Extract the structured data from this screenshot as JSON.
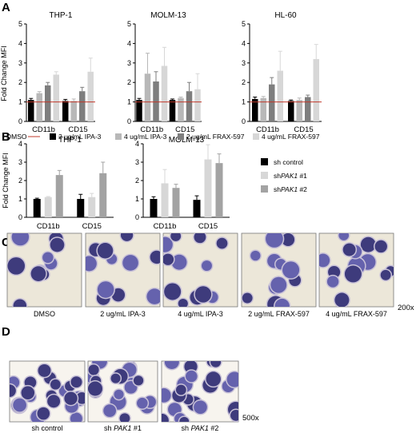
{
  "panels": {
    "A": "A",
    "B": "B",
    "C": "C",
    "D": "D"
  },
  "colors": {
    "black": "#000000",
    "gray1": "#b8b8b8",
    "gray2": "#7e7e7e",
    "gray3": "#d7d7d7",
    "gray4": "#a3a3a3",
    "dmso_line": "#c0392b",
    "cell": "#5a58a8",
    "cell_dark": "#2f2c72",
    "bg_light": "#ece7d9",
    "bg_white": "#f7f4ee"
  },
  "chart_data": [
    {
      "type": "bar",
      "title": "THP-1",
      "ylabel": "Fold Change MFI",
      "ylim": [
        0,
        5
      ],
      "yticks": [
        "0",
        "1",
        "2",
        "3",
        "4",
        "5"
      ],
      "categories": [
        "CD11b",
        "CD15"
      ],
      "reference_line": 1,
      "series": [
        {
          "name": "2 ug/mL IPA-3",
          "color_key": "black",
          "values": [
            1.1,
            1.05
          ],
          "errors": [
            0.08,
            0.08
          ]
        },
        {
          "name": "4 ug/mL IPA-3",
          "color_key": "gray1",
          "values": [
            1.45,
            1.05
          ],
          "errors": [
            0.08,
            0.1
          ]
        },
        {
          "name": "2 ug/mL FRAX-597",
          "color_key": "gray2",
          "values": [
            1.85,
            1.55
          ],
          "errors": [
            0.15,
            0.2
          ]
        },
        {
          "name": "4 ug/mL FRAX-597",
          "color_key": "gray3",
          "values": [
            2.4,
            2.55
          ],
          "errors": [
            0.15,
            0.7
          ]
        }
      ]
    },
    {
      "type": "bar",
      "title": "MOLM-13",
      "ylim": [
        0,
        5
      ],
      "yticks": [
        "0",
        "1",
        "2",
        "3",
        "4",
        "5"
      ],
      "categories": [
        "CD11b",
        "CD15"
      ],
      "reference_line": 1,
      "series": [
        {
          "name": "2 ug/mL IPA-3",
          "color_key": "black",
          "values": [
            1.1,
            1.1
          ],
          "errors": [
            0.08,
            0.05
          ]
        },
        {
          "name": "4 ug/mL IPA-3",
          "color_key": "gray1",
          "values": [
            2.45,
            1.2
          ],
          "errors": [
            1.05,
            0.05
          ]
        },
        {
          "name": "2 ug/mL FRAX-597",
          "color_key": "gray2",
          "values": [
            2.05,
            1.55
          ],
          "errors": [
            0.5,
            0.45
          ]
        },
        {
          "name": "4 ug/mL FRAX-597",
          "color_key": "gray3",
          "values": [
            2.85,
            1.65
          ],
          "errors": [
            0.95,
            0.8
          ]
        }
      ]
    },
    {
      "type": "bar",
      "title": "HL-60",
      "ylim": [
        0,
        5
      ],
      "yticks": [
        "0",
        "1",
        "2",
        "3",
        "4",
        "5"
      ],
      "categories": [
        "CD11b",
        "CD15"
      ],
      "reference_line": 1,
      "series": [
        {
          "name": "2 ug/mL IPA-3",
          "color_key": "black",
          "values": [
            1.15,
            1.05
          ],
          "errors": [
            0.1,
            0.05
          ]
        },
        {
          "name": "4 ug/mL IPA-3",
          "color_key": "gray1",
          "values": [
            1.2,
            1.1
          ],
          "errors": [
            0.08,
            0.1
          ]
        },
        {
          "name": "2 ug/mL FRAX-597",
          "color_key": "gray2",
          "values": [
            1.9,
            1.25
          ],
          "errors": [
            0.35,
            0.1
          ]
        },
        {
          "name": "4 ug/mL FRAX-597",
          "color_key": "gray3",
          "values": [
            2.6,
            3.2
          ],
          "errors": [
            1.0,
            0.75
          ]
        }
      ]
    },
    {
      "type": "bar",
      "title": "THP-1",
      "ylabel": "Fold Change MFI",
      "ylim": [
        0,
        4
      ],
      "yticks": [
        "0",
        "1",
        "2",
        "3",
        "4"
      ],
      "categories": [
        "CD11b",
        "CD15"
      ],
      "series": [
        {
          "name": "sh control",
          "color_key": "black",
          "values": [
            1.0,
            1.0
          ],
          "errors": [
            0.04,
            0.25
          ]
        },
        {
          "name": "shPAK1 #1",
          "color_key": "gray3",
          "values": [
            1.1,
            1.1
          ],
          "errors": [
            0.03,
            0.2
          ]
        },
        {
          "name": "shPAK1 #2",
          "color_key": "gray4",
          "values": [
            2.3,
            2.4
          ],
          "errors": [
            0.25,
            0.6
          ]
        }
      ]
    },
    {
      "type": "bar",
      "title": "MOLM-13",
      "ylim": [
        0,
        4
      ],
      "yticks": [
        "0",
        "1",
        "2",
        "3",
        "4"
      ],
      "categories": [
        "CD11b",
        "CD15"
      ],
      "series": [
        {
          "name": "sh control",
          "color_key": "black",
          "values": [
            1.0,
            0.95
          ],
          "errors": [
            0.12,
            0.22
          ]
        },
        {
          "name": "shPAK1 #1",
          "color_key": "gray3",
          "values": [
            1.85,
            3.15
          ],
          "errors": [
            0.75,
            0.8
          ]
        },
        {
          "name": "shPAK1 #2",
          "color_key": "gray4",
          "values": [
            1.6,
            2.95
          ],
          "errors": [
            0.2,
            0.5
          ]
        }
      ]
    }
  ],
  "legend_a": {
    "dmso": "DMSO",
    "items": [
      {
        "label": "2 ug/mL IPA-3",
        "color_key": "black"
      },
      {
        "label": "4 ug/mL IPA-3",
        "color_key": "gray1"
      },
      {
        "label": "2 ug/mL FRAX-597",
        "color_key": "gray2"
      },
      {
        "label": "4 ug/mL FRAX-597",
        "color_key": "gray3"
      }
    ]
  },
  "legend_b": {
    "items": [
      {
        "prefix": "sh control",
        "italic": "",
        "suffix": "",
        "color_key": "black"
      },
      {
        "prefix": "sh",
        "italic": "PAK1",
        "suffix": " #1",
        "color_key": "gray3"
      },
      {
        "prefix": "sh",
        "italic": "PAK1",
        "suffix": " #2",
        "color_key": "gray4"
      }
    ]
  },
  "panel_c": {
    "magnification": "200x",
    "images": [
      {
        "caption": "DMSO"
      },
      {
        "caption": "2 ug/mL IPA-3"
      },
      {
        "caption": "4 ug/mL IPA-3"
      },
      {
        "caption": "2 ug/mL FRAX-597"
      },
      {
        "caption": "4 ug/mL FRAX-597"
      }
    ]
  },
  "panel_d": {
    "magnification": "500x",
    "images": [
      {
        "prefix": "sh control",
        "italic": "",
        "suffix": ""
      },
      {
        "prefix": "sh ",
        "italic": "PAK1",
        "suffix": " #1"
      },
      {
        "prefix": "sh ",
        "italic": "PAK1",
        "suffix": " #2"
      }
    ]
  }
}
